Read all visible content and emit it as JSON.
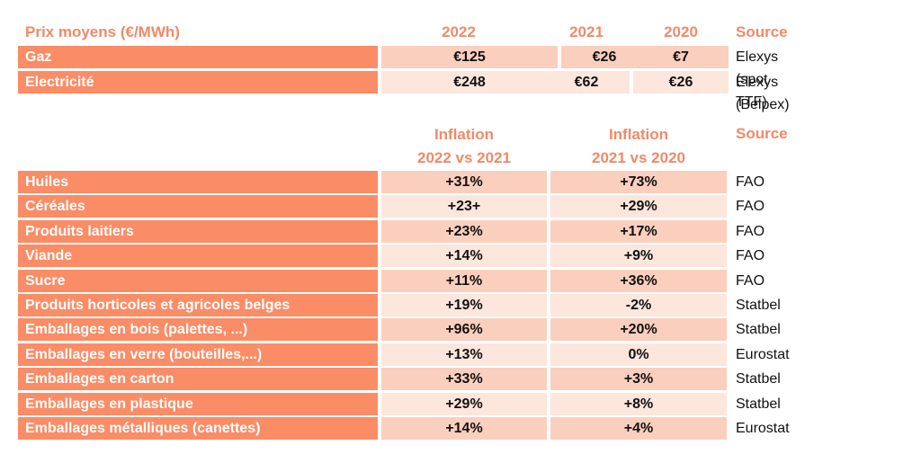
{
  "energy": {
    "header": {
      "label": "Prix moyens (€/MWh)",
      "y2022": "2022",
      "y2021": "2021",
      "y2020": "2020",
      "source": "Source"
    },
    "rows": [
      {
        "label": "Gaz",
        "v2022": "€125",
        "v2021": "€26",
        "v2020": "€7",
        "source": "Elexys (spot TTF)"
      },
      {
        "label": "Electricité",
        "v2022": "€248",
        "v2021": "€62",
        "v2020": "€26",
        "source": "Elexys (Belpex)"
      }
    ]
  },
  "inflation": {
    "header": {
      "col1_line1": "Inflation",
      "col1_line2": "2022 vs 2021",
      "col2_line1": "Inflation",
      "col2_line2": "2021 vs 2020",
      "source": "Source"
    },
    "rows": [
      {
        "label": "Huiles",
        "v1": "+31%",
        "v2": "+73%",
        "source": "FAO"
      },
      {
        "label": "Céréales",
        "v1": "+23+",
        "v2": "+29%",
        "source": "FAO"
      },
      {
        "label": "Produits laitiers",
        "v1": "+23%",
        "v2": "+17%",
        "source": "FAO"
      },
      {
        "label": "Viande",
        "v1": "+14%",
        "v2": "+9%",
        "source": "FAO"
      },
      {
        "label": "Sucre",
        "v1": "+11%",
        "v2": "+36%",
        "source": "FAO"
      },
      {
        "label": "Produits horticoles et agricoles belges",
        "v1": "+19%",
        "v2": "-2%",
        "source": "Statbel"
      },
      {
        "label": "Emballages en bois (palettes, ...)",
        "v1": "+96%",
        "v2": "+20%",
        "source": "Statbel"
      },
      {
        "label": "Emballages en verre (bouteilles,...)",
        "v1": "+13%",
        "v2": "0%",
        "source": "Eurostat"
      },
      {
        "label": "Emballages en carton",
        "v1": "+33%",
        "v2": "+3%",
        "source": "Statbel"
      },
      {
        "label": "Emballages en plastique",
        "v1": "+29%",
        "v2": "+8%",
        "source": "Statbel"
      },
      {
        "label": "Emballages métalliques (canettes)",
        "v1": "+14%",
        "v2": "+4%",
        "source": "Eurostat"
      }
    ]
  }
}
